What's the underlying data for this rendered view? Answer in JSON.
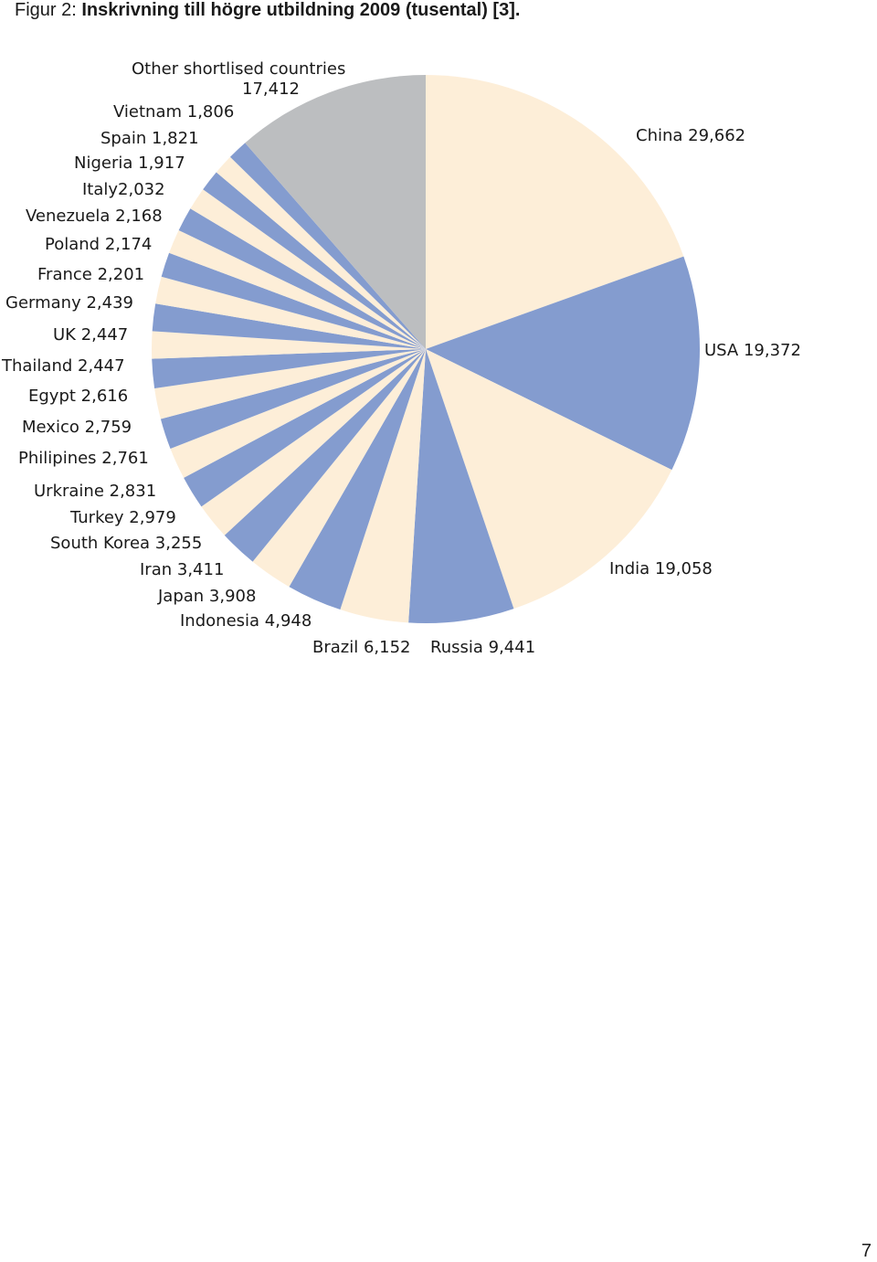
{
  "caption": {
    "prefix": "Figur 2:",
    "title": "Inskrivning till högre utbildning 2009 (tusental) [3]."
  },
  "page_number": "7",
  "colors": {
    "cream": "#fdeed8",
    "blue": "#849ccf",
    "gray": "#bcbec0"
  },
  "chart_data": {
    "type": "pie",
    "title": "Inskrivning till högre utbildning 2009 (tusental) [3].",
    "slices": [
      {
        "label": "China 29,662",
        "name": "China",
        "value": 29662,
        "color": "cream"
      },
      {
        "label": "USA 19,372",
        "name": "USA",
        "value": 19372,
        "color": "blue"
      },
      {
        "label": "India 19,058",
        "name": "India",
        "value": 19058,
        "color": "cream"
      },
      {
        "label": "Russia 9,441",
        "name": "Russia",
        "value": 9441,
        "color": "blue"
      },
      {
        "label": "Brazil 6,152",
        "name": "Brazil",
        "value": 6152,
        "color": "cream"
      },
      {
        "label": "Indonesia 4,948",
        "name": "Indonesia",
        "value": 4948,
        "color": "blue"
      },
      {
        "label": "Japan 3,908",
        "name": "Japan",
        "value": 3908,
        "color": "cream"
      },
      {
        "label": "Iran 3,411",
        "name": "Iran",
        "value": 3411,
        "color": "blue"
      },
      {
        "label": "South Korea 3,255",
        "name": "South Korea",
        "value": 3255,
        "color": "cream"
      },
      {
        "label": "Turkey 2,979",
        "name": "Turkey",
        "value": 2979,
        "color": "blue"
      },
      {
        "label": "Urkraine 2,831",
        "name": "Urkraine",
        "value": 2831,
        "color": "cream"
      },
      {
        "label": "Philipines 2,761",
        "name": "Philipines",
        "value": 2761,
        "color": "blue"
      },
      {
        "label": "Mexico 2,759",
        "name": "Mexico",
        "value": 2759,
        "color": "cream"
      },
      {
        "label": "Egypt 2,616",
        "name": "Egypt",
        "value": 2616,
        "color": "blue"
      },
      {
        "label": "Thailand 2,447",
        "name": "Thailand",
        "value": 2447,
        "color": "cream"
      },
      {
        "label": "UK 2,447",
        "name": "UK",
        "value": 2447,
        "color": "blue"
      },
      {
        "label": "Germany 2,439",
        "name": "Germany",
        "value": 2439,
        "color": "cream"
      },
      {
        "label": "France 2,201",
        "name": "France",
        "value": 2201,
        "color": "blue"
      },
      {
        "label": "Poland 2,174",
        "name": "Poland",
        "value": 2174,
        "color": "cream"
      },
      {
        "label": "Venezuela 2,168",
        "name": "Venezuela",
        "value": 2168,
        "color": "blue"
      },
      {
        "label": "Italy2,032",
        "name": "Italy",
        "value": 2032,
        "color": "cream"
      },
      {
        "label": "Nigeria 1,917",
        "name": "Nigeria",
        "value": 1917,
        "color": "blue"
      },
      {
        "label": "Spain 1,821",
        "name": "Spain",
        "value": 1821,
        "color": "cream"
      },
      {
        "label": "Vietnam 1,806",
        "name": "Vietnam",
        "value": 1806,
        "color": "blue"
      },
      {
        "label": "Other shortlised countries 17,412",
        "label_line1": "Other shortlised countries",
        "label_line2": "17,412",
        "name": "Other shortlised countries",
        "value": 17412,
        "color": "gray"
      }
    ]
  }
}
